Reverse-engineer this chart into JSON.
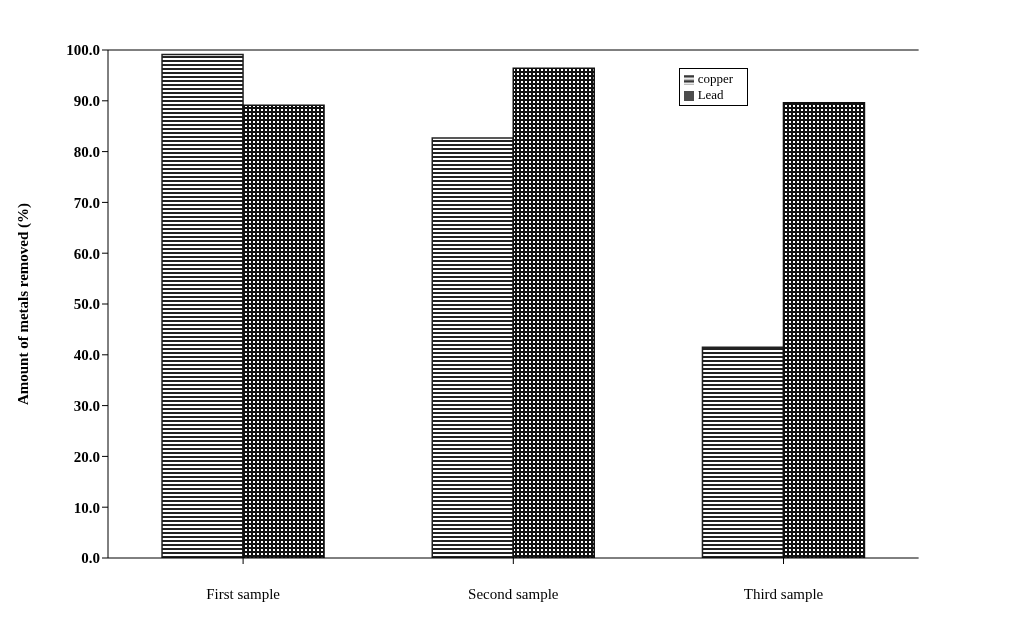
{
  "chart_data": {
    "type": "bar",
    "ylabel": "Amount of metals removed (%)",
    "categories": [
      "First sample",
      "Second sample",
      "Third sample"
    ],
    "series": [
      {
        "name": "copper",
        "color": "#222222",
        "values": [
          99.1,
          82.7,
          41.5
        ]
      },
      {
        "name": "Lead",
        "color": "#111111",
        "values": [
          89.1,
          96.4,
          89.6
        ]
      }
    ],
    "ylim": [
      0,
      100
    ],
    "yticks": [
      {
        "value": 0,
        "label": "0.0"
      },
      {
        "value": 10,
        "label": "10.0"
      },
      {
        "value": 20,
        "label": "20.0"
      },
      {
        "value": 30,
        "label": "30.0"
      },
      {
        "value": 40,
        "label": "40.0"
      },
      {
        "value": 50,
        "label": "50.0"
      },
      {
        "value": 60,
        "label": "60.0"
      },
      {
        "value": 70,
        "label": "70.0"
      },
      {
        "value": 80,
        "label": "80.0"
      },
      {
        "value": 90,
        "label": "90.0"
      },
      {
        "value": 100,
        "label": "100.0"
      }
    ],
    "grid": false,
    "legend": "top right"
  }
}
